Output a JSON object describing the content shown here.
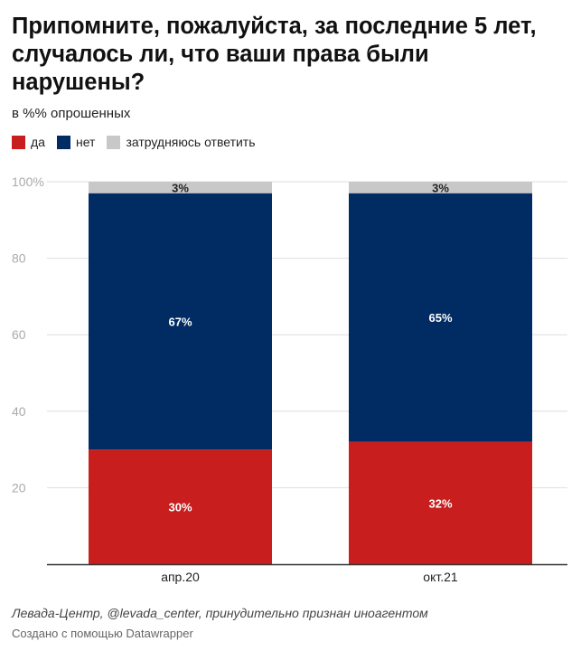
{
  "header": {
    "title": "Припомните, пожалуйста, за последние 5 лет, случалось ли, что ваши права были нарушены?",
    "subtitle": "в %% опрошенных"
  },
  "legend": [
    {
      "label": "да",
      "color": "#c81e1e"
    },
    {
      "label": "нет",
      "color": "#002c63"
    },
    {
      "label": "затрудняюсь ответить",
      "color": "#c8c8c8"
    }
  ],
  "footer": {
    "source": "Левада-Центр, @levada_center, принудительно признан иноагентом",
    "made_with": "Создано с помощью Datawrapper"
  },
  "chart_data": {
    "type": "bar",
    "stacked": true,
    "categories": [
      "апр.20",
      "окт.21"
    ],
    "series": [
      {
        "name": "да",
        "values": [
          30,
          32
        ],
        "labels": [
          "30%",
          "32%"
        ],
        "color": "#c81e1e"
      },
      {
        "name": "нет",
        "values": [
          67,
          65
        ],
        "labels": [
          "67%",
          "65%"
        ],
        "color": "#002c63"
      },
      {
        "name": "затрудняюсь ответить",
        "values": [
          3,
          3
        ],
        "labels": [
          "3%",
          "3%"
        ],
        "color": "#c8c8c8"
      }
    ],
    "ylim": [
      0,
      100
    ],
    "yticks": [
      "20",
      "40",
      "60",
      "80",
      "100%"
    ],
    "ytick_values": [
      20,
      40,
      60,
      80,
      100
    ],
    "grid": true,
    "legend_position": "top-left"
  }
}
